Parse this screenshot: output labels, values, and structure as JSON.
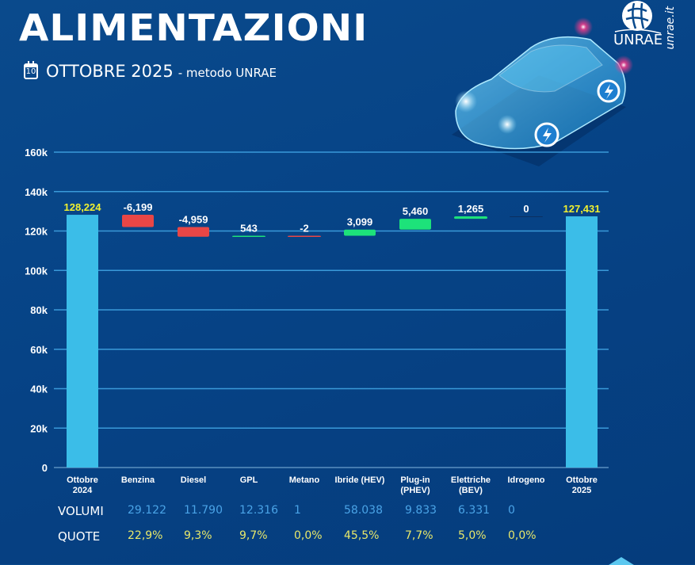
{
  "header": {
    "title": "ALIMENTAZIONI",
    "calendar_day": "10",
    "period": "OTTOBRE 2025",
    "method": "- metodo UNRAE",
    "logo_text": "UNRAE",
    "site": "unrae.it"
  },
  "colors": {
    "total": "#3bbde8",
    "decrease": "#e84646",
    "increase": "#1de27a",
    "total_label": "#f0f030",
    "grid": "#3a9ad9",
    "volumes": "#4aa3e6",
    "shares": "#e8e86a"
  },
  "chart_data": {
    "type": "waterfall",
    "title": "ALIMENTAZIONI",
    "categories": [
      "Ottobre 2024",
      "Benzina",
      "Diesel",
      "GPL",
      "Metano",
      "Ibride (HEV)",
      "Plug-in (PHEV)",
      "Elettriche (BEV)",
      "Idrogeno",
      "Ottobre 2025"
    ],
    "category_lines": [
      [
        "Ottobre",
        "2024"
      ],
      [
        "Benzina"
      ],
      [
        "Diesel"
      ],
      [
        "GPL"
      ],
      [
        "Metano"
      ],
      [
        "Ibride (HEV)"
      ],
      [
        "Plug-in",
        "(PHEV)"
      ],
      [
        "Elettriche",
        "(BEV)"
      ],
      [
        "Idrogeno"
      ],
      [
        "Ottobre",
        "2025"
      ]
    ],
    "kinds": [
      "total",
      "delta",
      "delta",
      "delta",
      "delta",
      "delta",
      "delta",
      "delta",
      "delta",
      "total"
    ],
    "values": [
      128224,
      -6199,
      -4959,
      543,
      -2,
      3099,
      5460,
      1265,
      0,
      127431
    ],
    "labels": [
      "128,224",
      "-6,199",
      "-4,959",
      "543",
      "-2",
      "3,099",
      "5,460",
      "1,265",
      "0",
      "127,431"
    ],
    "ylim": [
      0,
      160000
    ],
    "yticks": [
      0,
      20000,
      40000,
      60000,
      80000,
      100000,
      120000,
      140000,
      160000
    ],
    "ytick_labels": [
      "0",
      "20k",
      "40k",
      "60k",
      "80k",
      "100k",
      "120k",
      "140k",
      "160k"
    ],
    "grid": true,
    "xlabel": "",
    "ylabel": ""
  },
  "table": {
    "volumes_label": "VOLUMI",
    "shares_label": "QUOTE",
    "volumes": [
      "29.122",
      "11.790",
      "12.316",
      "1",
      "58.038",
      "9.833",
      "6.331",
      "0"
    ],
    "shares": [
      "22,9%",
      "9,3%",
      "9,7%",
      "0,0%",
      "45,5%",
      "7,7%",
      "5,0%",
      "0,0%"
    ]
  }
}
